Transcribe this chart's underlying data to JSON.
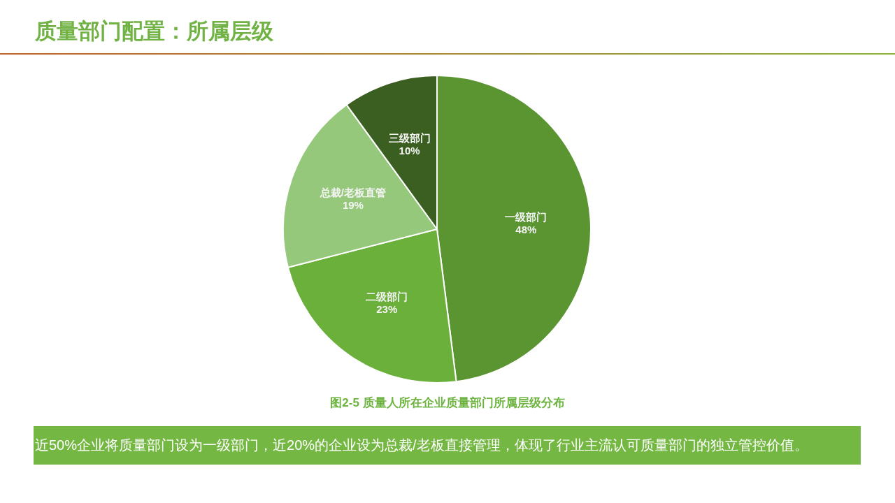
{
  "chart_data": {
    "type": "pie",
    "title": "质量部门配置：所属层级",
    "categories": [
      "一级部门",
      "二级部门",
      "总裁/老板直管",
      "三级部门"
    ],
    "values": [
      48,
      23,
      19,
      10
    ],
    "colors": [
      "#5a9532",
      "#6bb03b",
      "#95c87a",
      "#3a5f20"
    ],
    "value_labels": [
      "48%",
      "23%",
      "19%",
      "10%"
    ],
    "annotations": [
      "图2-5  质量人所在企业质量部门所属层级分布",
      "近50%企业将质量部门设为一级部门，近20%的企业设为总裁/老板直接管理，体现了行业主流认可质量部门的独立管控价值。"
    ]
  }
}
